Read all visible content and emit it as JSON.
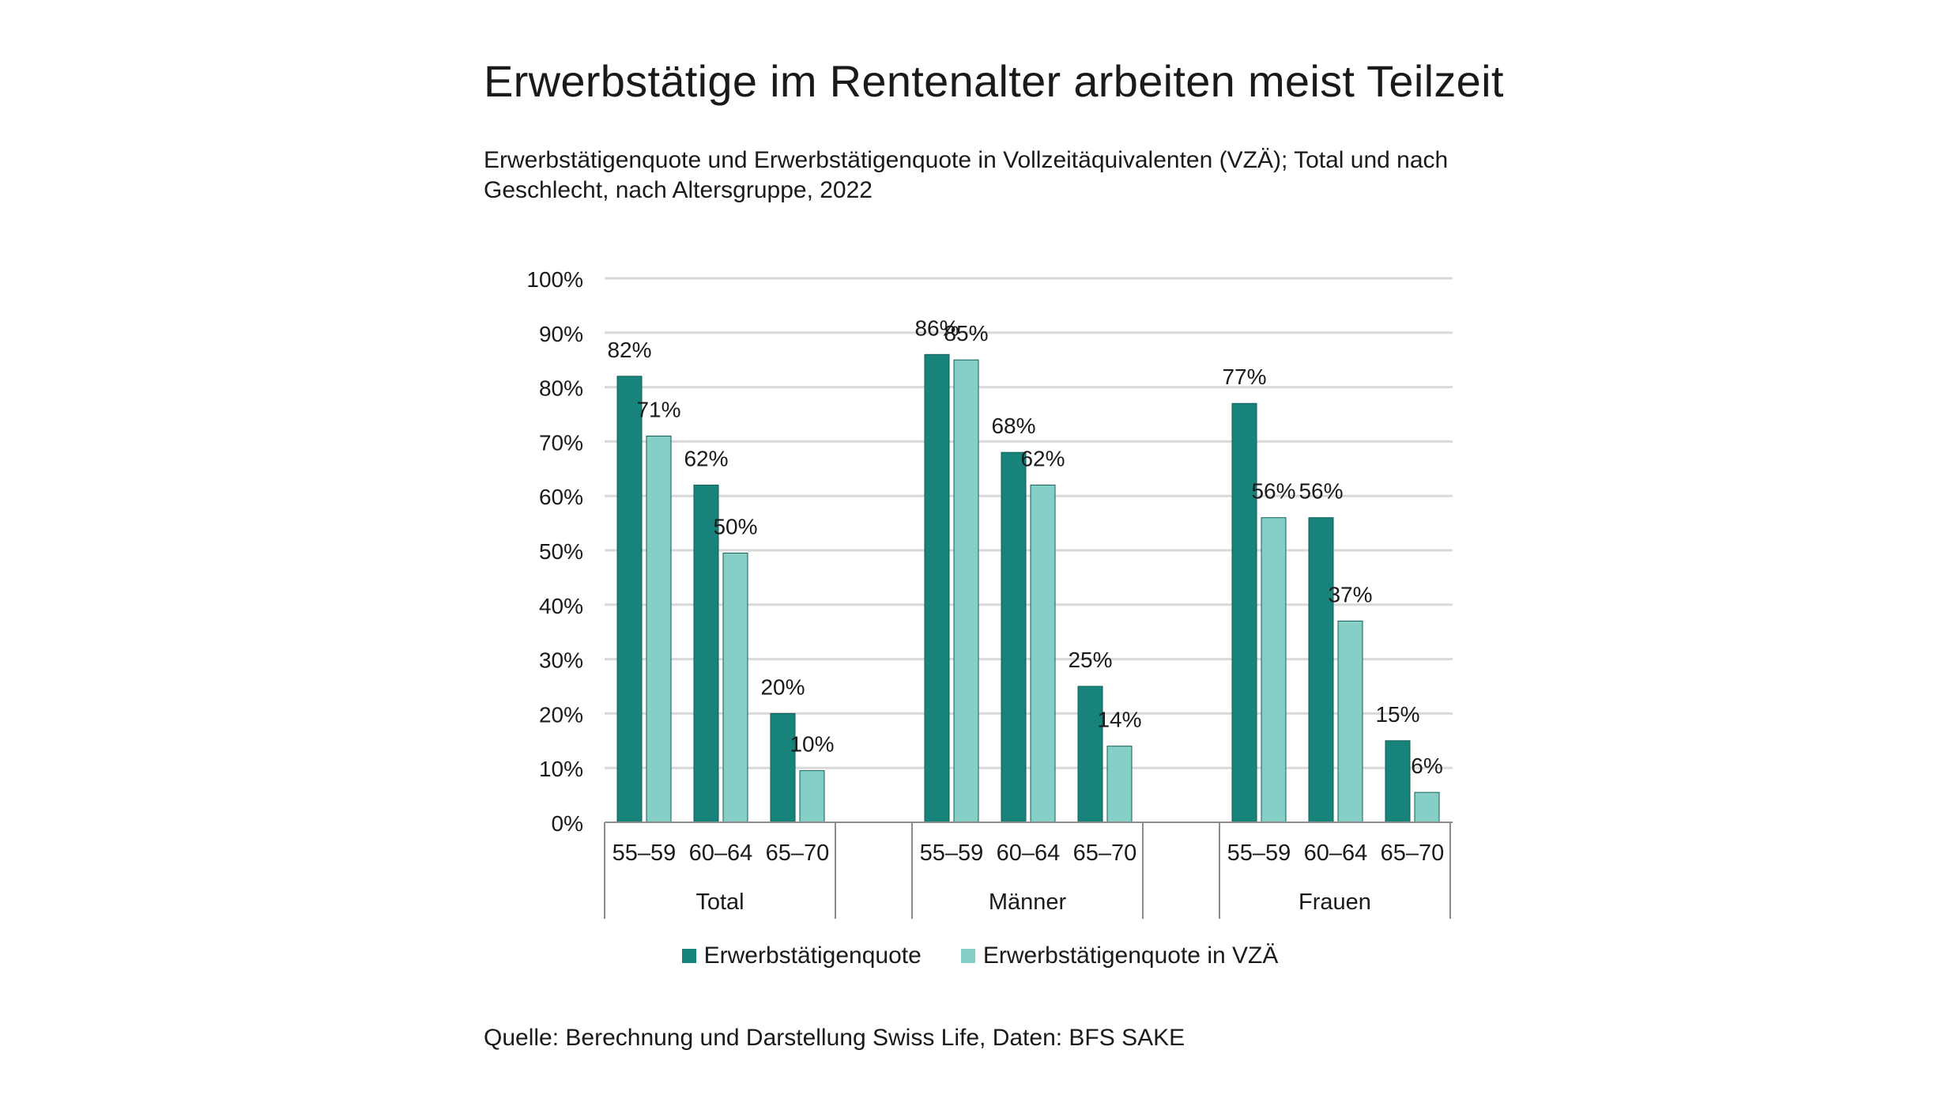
{
  "title": "Erwerbstätige im Rentenalter arbeiten meist Teilzeit",
  "subtitle": "Erwerbstätigenquote und Erwerbstätigenquote in Vollzeitäquivalenten (VZÄ); Total und nach Geschlecht, nach Altersgruppe, 2022",
  "source": "Quelle: Berechnung und Darstellung Swiss Life, Daten: BFS SAKE",
  "colors": {
    "Erwerbstätigenquote": "#17837a",
    "Erwerbstätigenquote in VZÄ": "#86cfc6",
    "grid": "#d9d9d9",
    "axis": "#8c8c8c"
  },
  "chart_data": {
    "type": "bar",
    "groups": [
      {
        "label": "Total",
        "categories": [
          "55–59",
          "60–64",
          "65–70"
        ]
      },
      {
        "label": "Männer",
        "categories": [
          "55–59",
          "60–64",
          "65–70"
        ]
      },
      {
        "label": "Frauen",
        "categories": [
          "55–59",
          "60–64",
          "65–70"
        ]
      }
    ],
    "series": [
      {
        "name": "Erwerbstätigenquote",
        "values": [
          82,
          62,
          20,
          86,
          68,
          25,
          77,
          56,
          15
        ],
        "labels": [
          "82%",
          "62%",
          "20%",
          "86%",
          "68%",
          "25%",
          "77%",
          "56%",
          "15%"
        ]
      },
      {
        "name": "Erwerbstätigenquote in VZÄ",
        "values": [
          71,
          49.5,
          9.5,
          85,
          62,
          14,
          56,
          37,
          5.5
        ],
        "labels": [
          "71%",
          "50%",
          "10%",
          "85%",
          "62%",
          "14%",
          "56%",
          "37%",
          "6%"
        ]
      }
    ],
    "ylim": [
      0,
      100
    ],
    "yticks": [
      "0%",
      "10%",
      "20%",
      "30%",
      "40%",
      "50%",
      "60%",
      "70%",
      "80%",
      "90%",
      "100%"
    ],
    "grid": true,
    "legend": "bottom-center"
  }
}
